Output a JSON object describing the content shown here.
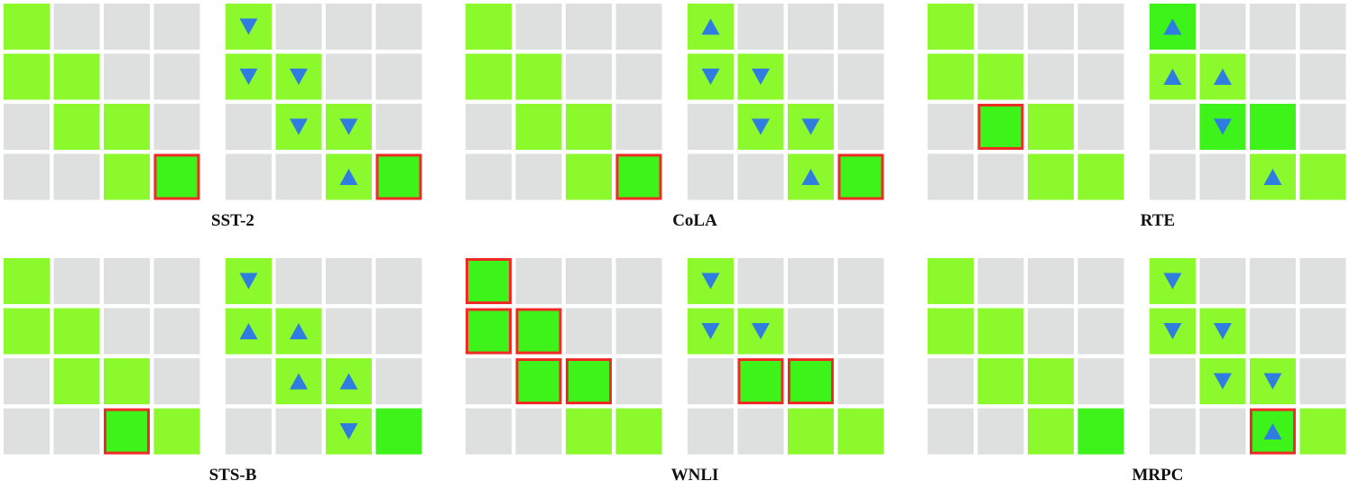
{
  "legend_cells": {
    "g": "gray cell",
    "l": "light green cell",
    "b": "bright green cell"
  },
  "colors": {
    "gray": "#dde0df",
    "light": "#8bf92c",
    "bright": "#3df31a",
    "highlight_border": "#ee2b25",
    "arrow": "#2f7de1"
  },
  "panels": [
    {
      "name": "SST-2",
      "left": [
        [
          "l",
          "g",
          "g",
          "g"
        ],
        [
          "l",
          "l",
          "g",
          "g"
        ],
        [
          "g",
          "l",
          "l",
          "g"
        ],
        [
          "g",
          "g",
          "l",
          "b"
        ]
      ],
      "left_marks": [
        [
          3,
          3
        ]
      ],
      "right": [
        [
          "l",
          "g",
          "g",
          "g"
        ],
        [
          "l",
          "l",
          "g",
          "g"
        ],
        [
          "g",
          "l",
          "l",
          "g"
        ],
        [
          "g",
          "g",
          "l",
          "b"
        ]
      ],
      "right_marks": [
        [
          3,
          3
        ]
      ],
      "arrows": [
        [
          0,
          0,
          "down"
        ],
        [
          1,
          0,
          "down"
        ],
        [
          1,
          1,
          "down"
        ],
        [
          2,
          1,
          "down"
        ],
        [
          2,
          2,
          "down"
        ],
        [
          3,
          2,
          "up"
        ]
      ]
    },
    {
      "name": "CoLA",
      "left": [
        [
          "l",
          "g",
          "g",
          "g"
        ],
        [
          "l",
          "l",
          "g",
          "g"
        ],
        [
          "g",
          "l",
          "l",
          "g"
        ],
        [
          "g",
          "g",
          "l",
          "b"
        ]
      ],
      "left_marks": [
        [
          3,
          3
        ]
      ],
      "right": [
        [
          "l",
          "g",
          "g",
          "g"
        ],
        [
          "l",
          "l",
          "g",
          "g"
        ],
        [
          "g",
          "l",
          "l",
          "g"
        ],
        [
          "g",
          "g",
          "l",
          "b"
        ]
      ],
      "right_marks": [
        [
          3,
          3
        ]
      ],
      "arrows": [
        [
          0,
          0,
          "up"
        ],
        [
          1,
          0,
          "down"
        ],
        [
          1,
          1,
          "down"
        ],
        [
          2,
          1,
          "down"
        ],
        [
          2,
          2,
          "down"
        ],
        [
          3,
          2,
          "up"
        ]
      ]
    },
    {
      "name": "RTE",
      "left": [
        [
          "l",
          "g",
          "g",
          "g"
        ],
        [
          "l",
          "l",
          "g",
          "g"
        ],
        [
          "g",
          "b",
          "l",
          "g"
        ],
        [
          "g",
          "g",
          "l",
          "l"
        ]
      ],
      "left_marks": [
        [
          2,
          1
        ]
      ],
      "right": [
        [
          "b",
          "g",
          "g",
          "g"
        ],
        [
          "l",
          "l",
          "g",
          "g"
        ],
        [
          "g",
          "b",
          "b",
          "g"
        ],
        [
          "g",
          "g",
          "l",
          "l"
        ]
      ],
      "right_marks": [],
      "arrows": [
        [
          0,
          0,
          "up"
        ],
        [
          1,
          0,
          "up"
        ],
        [
          1,
          1,
          "up"
        ],
        [
          2,
          1,
          "down"
        ],
        [
          3,
          2,
          "up"
        ]
      ]
    },
    {
      "name": "STS-B",
      "left": [
        [
          "l",
          "g",
          "g",
          "g"
        ],
        [
          "l",
          "l",
          "g",
          "g"
        ],
        [
          "g",
          "l",
          "l",
          "g"
        ],
        [
          "g",
          "g",
          "b",
          "l"
        ]
      ],
      "left_marks": [
        [
          3,
          2
        ]
      ],
      "right": [
        [
          "l",
          "g",
          "g",
          "g"
        ],
        [
          "l",
          "l",
          "g",
          "g"
        ],
        [
          "g",
          "l",
          "l",
          "g"
        ],
        [
          "g",
          "g",
          "l",
          "b"
        ]
      ],
      "right_marks": [],
      "arrows": [
        [
          0,
          0,
          "down"
        ],
        [
          1,
          0,
          "up"
        ],
        [
          1,
          1,
          "up"
        ],
        [
          2,
          1,
          "up"
        ],
        [
          2,
          2,
          "up"
        ],
        [
          3,
          2,
          "down"
        ]
      ]
    },
    {
      "name": "WNLI",
      "left": [
        [
          "b",
          "g",
          "g",
          "g"
        ],
        [
          "b",
          "b",
          "g",
          "g"
        ],
        [
          "g",
          "b",
          "b",
          "g"
        ],
        [
          "g",
          "g",
          "l",
          "l"
        ]
      ],
      "left_marks": [
        [
          0,
          0
        ],
        [
          1,
          0
        ],
        [
          1,
          1
        ],
        [
          2,
          1
        ],
        [
          2,
          2
        ]
      ],
      "right": [
        [
          "l",
          "g",
          "g",
          "g"
        ],
        [
          "l",
          "l",
          "g",
          "g"
        ],
        [
          "g",
          "b",
          "b",
          "g"
        ],
        [
          "g",
          "g",
          "l",
          "l"
        ]
      ],
      "right_marks": [
        [
          2,
          1
        ],
        [
          2,
          2
        ]
      ],
      "arrows": [
        [
          0,
          0,
          "down"
        ],
        [
          1,
          0,
          "down"
        ],
        [
          1,
          1,
          "down"
        ]
      ]
    },
    {
      "name": "MRPC",
      "left": [
        [
          "l",
          "g",
          "g",
          "g"
        ],
        [
          "l",
          "l",
          "g",
          "g"
        ],
        [
          "g",
          "l",
          "l",
          "g"
        ],
        [
          "g",
          "g",
          "l",
          "b"
        ]
      ],
      "left_marks": [],
      "right": [
        [
          "l",
          "g",
          "g",
          "g"
        ],
        [
          "l",
          "l",
          "g",
          "g"
        ],
        [
          "g",
          "l",
          "l",
          "g"
        ],
        [
          "g",
          "g",
          "b",
          "l"
        ]
      ],
      "right_marks": [
        [
          3,
          2
        ]
      ],
      "arrows": [
        [
          0,
          0,
          "down"
        ],
        [
          1,
          0,
          "down"
        ],
        [
          1,
          1,
          "down"
        ],
        [
          2,
          1,
          "down"
        ],
        [
          2,
          2,
          "down"
        ],
        [
          3,
          2,
          "up"
        ]
      ]
    }
  ]
}
